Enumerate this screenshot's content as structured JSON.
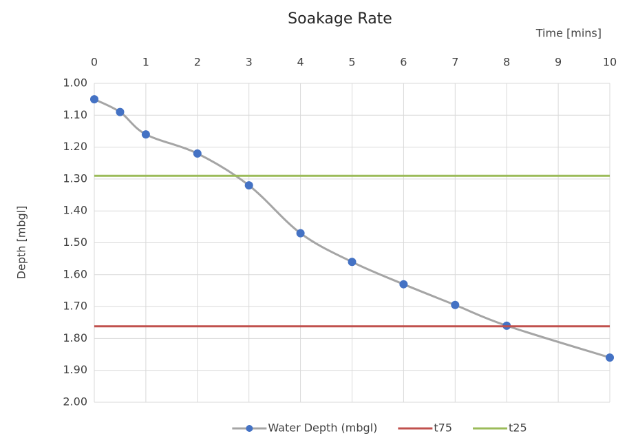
{
  "chart_data": {
    "type": "line",
    "title": "Soakage Rate",
    "x_label": "Time [mins]",
    "y_label": "Depth [mbgl]",
    "xlim": [
      0,
      10
    ],
    "xticks": [
      0,
      1,
      2,
      3,
      4,
      5,
      6,
      7,
      8,
      9,
      10
    ],
    "ylim": [
      1,
      2
    ],
    "yticks": [
      {
        "value": 1,
        "label": "1.00"
      },
      {
        "value": 1.1,
        "label": "1.10"
      },
      {
        "value": 1.2,
        "label": "1.20"
      },
      {
        "value": 1.3,
        "label": "1.30"
      },
      {
        "value": 1.4,
        "label": "1.40"
      },
      {
        "value": 1.5,
        "label": "1.50"
      },
      {
        "value": 1.6,
        "label": "1.60"
      },
      {
        "value": 1.7,
        "label": "1.70"
      },
      {
        "value": 1.8,
        "label": "1.80"
      },
      {
        "value": 1.9,
        "label": "1.90"
      },
      {
        "value": 2,
        "label": "2.00"
      }
    ],
    "y_inverted": true,
    "x_axis_position": "top",
    "grid": true,
    "legend": "bottom",
    "series": [
      {
        "name": "Water Depth (mbgl)",
        "color": "#a5a5a5",
        "marker_color": "#4472c4",
        "smooth": true,
        "markers": true,
        "x": [
          0,
          0.5,
          1,
          2,
          3,
          4,
          5,
          6,
          7,
          8,
          10
        ],
        "values": [
          1.05,
          1.09,
          1.16,
          1.22,
          1.32,
          1.47,
          1.56,
          1.63,
          1.695,
          1.76,
          1.86
        ]
      },
      {
        "name": "t75",
        "color": "#c0504d",
        "markers": false,
        "x": [
          0,
          10
        ],
        "values": [
          1.762,
          1.762
        ]
      },
      {
        "name": "t25",
        "color": "#9bbb59",
        "markers": false,
        "x": [
          0,
          10
        ],
        "values": [
          1.29,
          1.29
        ]
      }
    ]
  }
}
